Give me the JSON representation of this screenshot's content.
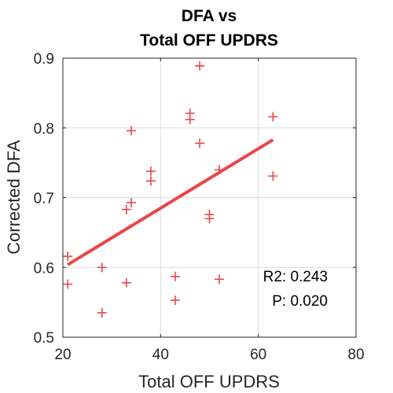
{
  "chart_data": {
    "type": "scatter",
    "title": [
      "DFA vs",
      "Total OFF UPDRS"
    ],
    "xlabel": "Total OFF UPDRS",
    "ylabel": "Corrected DFA",
    "xlim": [
      20,
      80
    ],
    "ylim": [
      0.5,
      0.9
    ],
    "xticks": [
      20,
      40,
      60,
      80
    ],
    "xtick_labels": [
      "20",
      "40",
      "60",
      "80"
    ],
    "yticks": [
      0.5,
      0.6,
      0.7,
      0.8,
      0.9
    ],
    "ytick_labels": [
      "0.5",
      "0.6",
      "0.7",
      "0.8",
      "0.9"
    ],
    "grid": true,
    "marker": "plus",
    "color": "#e8474a",
    "points": [
      {
        "x": 21,
        "y": 0.616
      },
      {
        "x": 21,
        "y": 0.576
      },
      {
        "x": 28,
        "y": 0.6
      },
      {
        "x": 28,
        "y": 0.535
      },
      {
        "x": 33,
        "y": 0.683
      },
      {
        "x": 33,
        "y": 0.578
      },
      {
        "x": 34,
        "y": 0.796
      },
      {
        "x": 34,
        "y": 0.693
      },
      {
        "x": 38,
        "y": 0.738
      },
      {
        "x": 38,
        "y": 0.724
      },
      {
        "x": 43,
        "y": 0.587
      },
      {
        "x": 43,
        "y": 0.553
      },
      {
        "x": 46,
        "y": 0.821
      },
      {
        "x": 46,
        "y": 0.812
      },
      {
        "x": 48,
        "y": 0.889
      },
      {
        "x": 48,
        "y": 0.778
      },
      {
        "x": 50,
        "y": 0.676
      },
      {
        "x": 50,
        "y": 0.67
      },
      {
        "x": 52,
        "y": 0.74
      },
      {
        "x": 52,
        "y": 0.583
      },
      {
        "x": 63,
        "y": 0.816
      },
      {
        "x": 63,
        "y": 0.731
      }
    ],
    "fit_line": {
      "x": [
        21,
        63
      ],
      "y": [
        0.604,
        0.783
      ]
    },
    "annotations": [
      "R2: 0.243",
      "P: 0.020"
    ]
  }
}
